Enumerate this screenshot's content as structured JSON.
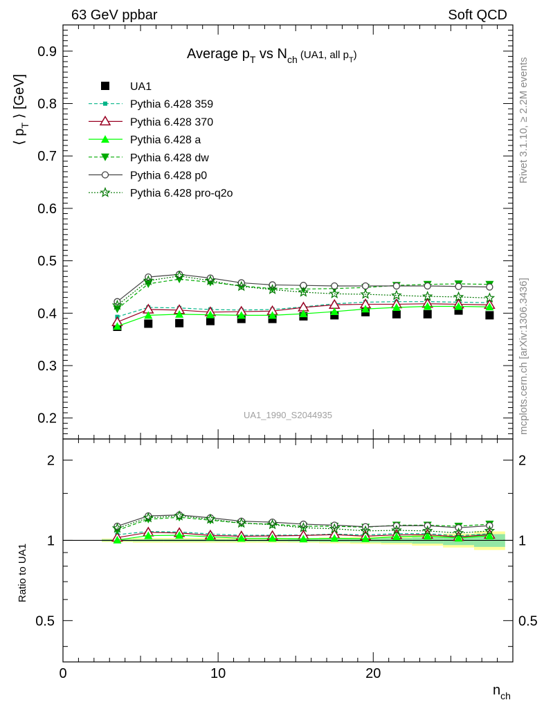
{
  "header": {
    "left_title": "63 GeV ppbar",
    "right_title": "Soft QCD"
  },
  "side_text": {
    "rivet": "Rivet 3.1.10, ≥ 2.2M events",
    "mcplots": "mcplots.cern.ch [arXiv:1306.3436]"
  },
  "main_plot": {
    "title_parts": [
      "Average p",
      "T",
      " vs N",
      "ch",
      " (UA1, all p",
      "T",
      ")"
    ],
    "ylabel_parts": [
      "⟨ p",
      "T",
      " ⟩ [GeV]"
    ],
    "watermark": "UA1_1990_S2044935",
    "yticks": [
      "0.2",
      "0.3",
      "0.4",
      "0.5",
      "0.6",
      "0.7",
      "0.8",
      "0.9"
    ]
  },
  "ratio_plot": {
    "ylabel": "Ratio to UA1",
    "yticks": [
      "0.5",
      "1",
      "2"
    ]
  },
  "x_axis": {
    "label_parts": [
      "n",
      "ch"
    ],
    "ticks": [
      "0",
      "10",
      "20"
    ]
  },
  "colors": {
    "data": "#000000",
    "p359": "#00b487",
    "p370": "#990022",
    "pa": "#00ff00",
    "pdw": "#00aa00",
    "pp0": "#444444",
    "pq2o": "#007700",
    "band_yellow": "#ffff99",
    "band_green": "#66ddaa"
  },
  "chart_data": [
    {
      "type": "scatter",
      "panel": "main",
      "title": "Average pT vs Nch (UA1, all pT)",
      "xlabel": "nch",
      "ylabel": "⟨ pT ⟩ [GeV]",
      "xlim": [
        0,
        29
      ],
      "ylim": [
        0.16,
        0.95
      ],
      "grid": false,
      "legend_position": "top-left",
      "x": [
        3.5,
        5.5,
        7.5,
        9.5,
        11.5,
        13.5,
        15.5,
        17.5,
        19.5,
        21.5,
        23.5,
        25.5,
        27.5
      ],
      "series": [
        {
          "name": "UA1",
          "key": "data",
          "style": "data",
          "values": [
            0.374,
            0.38,
            0.381,
            0.385,
            0.389,
            0.389,
            0.394,
            0.396,
            0.402,
            0.398,
            0.398,
            0.405,
            0.396
          ]
        },
        {
          "name": "Pythia 6.428 359",
          "key": "p359",
          "style": "p359",
          "values": [
            0.393,
            0.411,
            0.41,
            0.407,
            0.406,
            0.407,
            0.412,
            0.418,
            0.421,
            0.422,
            0.422,
            0.421,
            0.42
          ]
        },
        {
          "name": "Pythia 6.428 370",
          "key": "p370",
          "style": "p370",
          "values": [
            0.383,
            0.407,
            0.406,
            0.402,
            0.403,
            0.404,
            0.411,
            0.416,
            0.417,
            0.417,
            0.418,
            0.417,
            0.416
          ]
        },
        {
          "name": "Pythia 6.428 a",
          "key": "pa",
          "style": "pa",
          "values": [
            0.375,
            0.396,
            0.398,
            0.397,
            0.396,
            0.396,
            0.399,
            0.403,
            0.408,
            0.411,
            0.413,
            0.413,
            0.412
          ]
        },
        {
          "name": "Pythia 6.428 dw",
          "key": "pdw",
          "style": "pdw",
          "values": [
            0.408,
            0.456,
            0.465,
            0.459,
            0.452,
            0.447,
            0.446,
            0.447,
            0.449,
            0.453,
            0.455,
            0.456,
            0.455
          ]
        },
        {
          "name": "Pythia 6.428 p0",
          "key": "pp0",
          "style": "pp0",
          "values": [
            0.422,
            0.469,
            0.474,
            0.467,
            0.458,
            0.454,
            0.453,
            0.452,
            0.452,
            0.452,
            0.452,
            0.451,
            0.45
          ]
        },
        {
          "name": "Pythia 6.428 pro-q2o",
          "key": "pq2o",
          "style": "pq2o",
          "values": [
            0.415,
            0.462,
            0.471,
            0.462,
            0.451,
            0.445,
            0.44,
            0.437,
            0.436,
            0.434,
            0.432,
            0.431,
            0.429
          ]
        }
      ]
    },
    {
      "type": "scatter",
      "panel": "ratio",
      "ylabel": "Ratio to UA1",
      "xlim": [
        0,
        29
      ],
      "ylim": [
        0.35,
        2.4
      ],
      "yscale": "log",
      "x": [
        3.5,
        5.5,
        7.5,
        9.5,
        11.5,
        13.5,
        15.5,
        17.5,
        19.5,
        21.5,
        23.5,
        25.5,
        27.5
      ],
      "uncertainty_band": {
        "x_edges": [
          2.5,
          4.5,
          6.5,
          8.5,
          10.5,
          12.5,
          14.5,
          16.5,
          18.5,
          20.5,
          22.5,
          24.5,
          26.5,
          28.5
        ],
        "yellow_halfwidth": [
          0.015,
          0.02,
          0.02,
          0.02,
          0.02,
          0.02,
          0.02,
          0.025,
          0.03,
          0.035,
          0.045,
          0.06,
          0.08
        ],
        "green_halfwidth": [
          0.008,
          0.01,
          0.01,
          0.01,
          0.01,
          0.01,
          0.012,
          0.014,
          0.018,
          0.022,
          0.028,
          0.04,
          0.055
        ]
      },
      "series": [
        {
          "name": "Pythia 6.428 359",
          "key": "p359",
          "style": "p359",
          "values": [
            1.05,
            1.08,
            1.075,
            1.057,
            1.044,
            1.046,
            1.046,
            1.056,
            1.047,
            1.06,
            1.06,
            1.04,
            1.06
          ]
        },
        {
          "name": "Pythia 6.428 370",
          "key": "p370",
          "style": "p370",
          "values": [
            1.024,
            1.071,
            1.066,
            1.044,
            1.036,
            1.039,
            1.043,
            1.051,
            1.037,
            1.048,
            1.05,
            1.03,
            1.05
          ]
        },
        {
          "name": "Pythia 6.428 a",
          "key": "pa",
          "style": "pa",
          "values": [
            1.003,
            1.042,
            1.045,
            1.031,
            1.018,
            1.018,
            1.013,
            1.018,
            1.015,
            1.033,
            1.038,
            1.02,
            1.04
          ]
        },
        {
          "name": "Pythia 6.428 dw",
          "key": "pdw",
          "style": "pdw",
          "values": [
            1.09,
            1.2,
            1.22,
            1.19,
            1.16,
            1.15,
            1.13,
            1.13,
            1.12,
            1.14,
            1.14,
            1.13,
            1.15
          ]
        },
        {
          "name": "Pythia 6.428 p0",
          "key": "pp0",
          "style": "pp0",
          "values": [
            1.13,
            1.235,
            1.245,
            1.215,
            1.18,
            1.17,
            1.15,
            1.14,
            1.125,
            1.135,
            1.135,
            1.115,
            1.135
          ]
        },
        {
          "name": "Pythia 6.428 pro-q2o",
          "key": "pq2o",
          "style": "pq2o",
          "values": [
            1.11,
            1.215,
            1.235,
            1.2,
            1.16,
            1.145,
            1.115,
            1.105,
            1.085,
            1.09,
            1.085,
            1.065,
            1.085
          ]
        }
      ]
    }
  ]
}
